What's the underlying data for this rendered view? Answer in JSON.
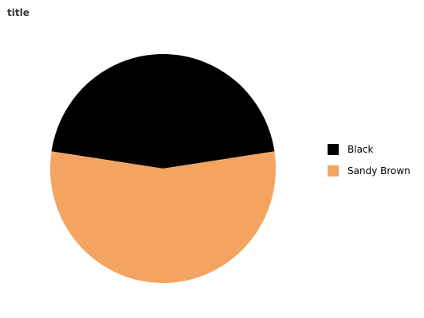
{
  "chart_data": {
    "type": "pie",
    "title": "title",
    "series": [
      {
        "name": "Black",
        "value": 45.2,
        "color": "#000000"
      },
      {
        "name": "Sandy Brown",
        "value": 54.8,
        "color": "#f4a460"
      }
    ],
    "legend_position": "right"
  }
}
